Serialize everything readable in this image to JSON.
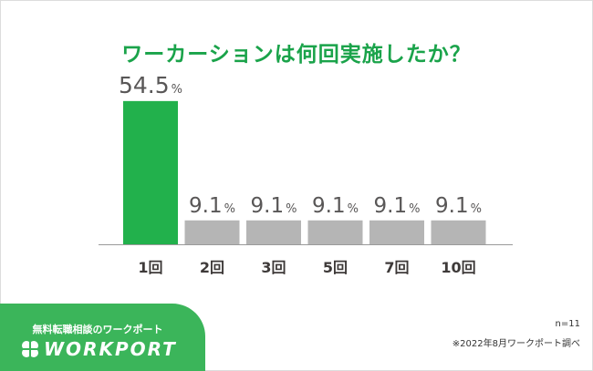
{
  "colors": {
    "accent": "#22b14c",
    "bar_highlight": "#22b14c",
    "bar_default": "#b5b5b5",
    "title": "#1aa34a",
    "brand_bg": "#3bb55a"
  },
  "chart_data": {
    "type": "bar",
    "title": "ワーカーションは何回実施したか？",
    "categories": [
      "1回",
      "2回",
      "3回",
      "5回",
      "7回",
      "10回"
    ],
    "values": [
      54.5,
      9.1,
      9.1,
      9.1,
      9.1,
      9.1
    ],
    "value_labels": [
      "54.5",
      "9.1",
      "9.1",
      "9.1",
      "9.1",
      "9.1"
    ],
    "value_unit": "%",
    "highlight_index": 0,
    "ylim": [
      0,
      60
    ],
    "grid": false,
    "xlabel": "",
    "ylabel": ""
  },
  "footer": {
    "sample_size": "n=11",
    "source": "※2022年8月ワークポート調べ"
  },
  "brand": {
    "tagline": "無料転職相談のワークポート",
    "name": "WORKPORT",
    "logo_icon": "clover-icon"
  }
}
